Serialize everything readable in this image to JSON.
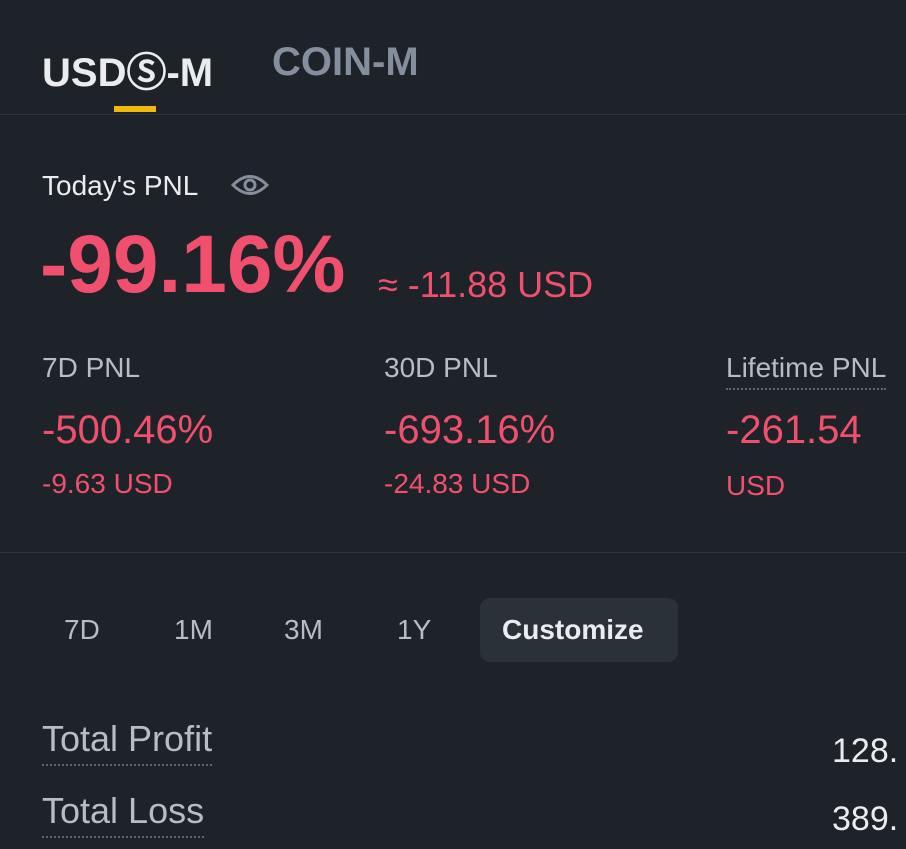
{
  "tabs": [
    "USDⓈ-M",
    "COIN-M"
  ],
  "today": {
    "label": "Today's PNL",
    "percent": "-99.16%",
    "approx": "≈ -11.88 USD"
  },
  "periods": [
    {
      "label": "7D PNL",
      "percent": "-500.46%",
      "amount": "-9.63 USD"
    },
    {
      "label": "30D PNL",
      "percent": "-693.16%",
      "amount": "-24.83 USD"
    },
    {
      "label": "Lifetime PNL",
      "percent": "-261.54",
      "amount": "USD"
    }
  ],
  "ranges": [
    "7D",
    "1M",
    "3M",
    "1Y",
    "Customize"
  ],
  "totals": [
    {
      "label": "Total Profit",
      "value": "128."
    },
    {
      "label": "Total Loss",
      "value": "389."
    }
  ]
}
